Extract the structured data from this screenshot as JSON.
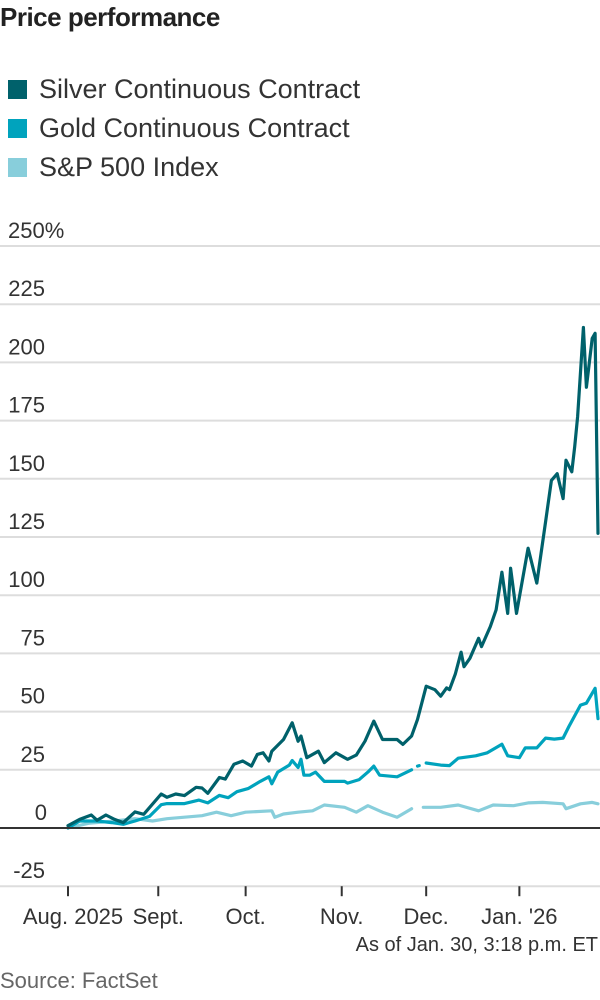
{
  "chart_data": {
    "type": "line",
    "title": "Price performance",
    "xlabel": "",
    "ylabel": "",
    "y_unit": "%",
    "ylim": [
      -25,
      250
    ],
    "yticks": [
      -25,
      0,
      25,
      50,
      75,
      100,
      125,
      150,
      175,
      200,
      225,
      250
    ],
    "ytick_labels": [
      "-25",
      "0",
      "25",
      "50",
      "75",
      "100",
      "125",
      "150",
      "175",
      "200",
      "225",
      "250%"
    ],
    "x_unit": "days since Aug. 1, 2025",
    "xlim": [
      0,
      182
    ],
    "xticks": [
      {
        "day": 0,
        "label": "Aug. 2025"
      },
      {
        "day": 31,
        "label": "Sept."
      },
      {
        "day": 61,
        "label": "Oct."
      },
      {
        "day": 94,
        "label": "Nov."
      },
      {
        "day": 123,
        "label": "Dec."
      },
      {
        "day": 155,
        "label": "Jan. '26"
      }
    ],
    "grid": true,
    "legend_position": "top-left",
    "series": [
      {
        "name": "Silver Continuous Contract",
        "color": "#00616b",
        "points": [
          [
            0,
            1
          ],
          [
            4,
            3.7
          ],
          [
            8,
            5.6
          ],
          [
            10,
            3.3
          ],
          [
            13,
            5.6
          ],
          [
            16,
            3.7
          ],
          [
            19,
            2.3
          ],
          [
            23,
            6.9
          ],
          [
            26,
            5.9
          ],
          [
            32,
            14.6
          ],
          [
            34,
            13.2
          ],
          [
            37,
            14.6
          ],
          [
            40,
            13.9
          ],
          [
            44,
            17.5
          ],
          [
            46,
            17.2
          ],
          [
            48,
            14.9
          ],
          [
            52,
            21.7
          ],
          [
            54,
            21
          ],
          [
            57,
            27.4
          ],
          [
            60,
            28.8
          ],
          [
            63,
            26.6
          ],
          [
            65,
            31.6
          ],
          [
            67,
            32.3
          ],
          [
            69,
            28.8
          ],
          [
            70,
            33
          ],
          [
            74,
            38
          ],
          [
            77,
            45.2
          ],
          [
            79,
            37.3
          ],
          [
            80,
            39.5
          ],
          [
            82,
            30.2
          ],
          [
            86,
            33
          ],
          [
            88,
            28.1
          ],
          [
            92,
            32.3
          ],
          [
            95,
            30.2
          ],
          [
            96,
            29.5
          ],
          [
            99,
            31.3
          ],
          [
            102,
            37.3
          ],
          [
            105,
            45.9
          ],
          [
            108,
            38
          ],
          [
            111,
            38
          ],
          [
            113,
            38
          ],
          [
            115,
            35.9
          ],
          [
            118,
            39.5
          ],
          [
            120,
            46.6
          ],
          [
            123,
            60.9
          ],
          [
            126,
            59.4
          ],
          [
            128,
            56.6
          ],
          [
            130,
            60.2
          ],
          [
            131,
            59.4
          ],
          [
            133,
            66.1
          ],
          [
            135,
            75.5
          ],
          [
            136,
            69.3
          ],
          [
            138,
            72.9
          ],
          [
            141,
            81.5
          ],
          [
            142,
            77.9
          ],
          [
            145,
            86.5
          ],
          [
            147,
            93.7
          ],
          [
            149,
            109.9
          ],
          [
            151,
            92.2
          ],
          [
            152,
            111.6
          ],
          [
            154,
            92.2
          ],
          [
            158,
            120.2
          ],
          [
            161,
            105.2
          ],
          [
            164,
            131.6
          ],
          [
            166,
            149.3
          ],
          [
            168,
            152.2
          ],
          [
            170,
            141.5
          ],
          [
            171,
            158
          ],
          [
            173,
            153
          ],
          [
            174,
            163.8
          ],
          [
            175,
            176.6
          ],
          [
            177,
            215
          ],
          [
            178,
            189.3
          ],
          [
            180,
            210.3
          ],
          [
            181,
            212.5
          ],
          [
            182,
            126.6
          ]
        ]
      },
      {
        "name": "Gold Continuous Contract",
        "color": "#00a3bd",
        "points": [
          [
            0,
            0
          ],
          [
            4,
            3
          ],
          [
            10,
            3
          ],
          [
            15,
            2.3
          ],
          [
            19,
            1.6
          ],
          [
            23,
            3
          ],
          [
            28,
            5
          ],
          [
            32,
            10
          ],
          [
            34,
            10.5
          ],
          [
            40,
            10.5
          ],
          [
            45,
            12
          ],
          [
            48,
            10.8
          ],
          [
            52,
            14
          ],
          [
            55,
            13
          ],
          [
            58,
            15.6
          ],
          [
            62,
            17
          ],
          [
            66,
            20
          ],
          [
            69,
            22
          ],
          [
            70,
            19
          ],
          [
            72,
            24
          ],
          [
            76,
            27
          ],
          [
            77,
            29
          ],
          [
            79,
            26
          ],
          [
            80,
            29.5
          ],
          [
            81,
            22.7
          ],
          [
            83,
            22.7
          ],
          [
            85,
            24
          ],
          [
            88,
            20
          ],
          [
            91,
            20
          ],
          [
            95,
            20
          ],
          [
            96,
            19.3
          ],
          [
            100,
            20.8
          ],
          [
            103,
            24
          ],
          [
            105,
            26.6
          ],
          [
            107,
            22.7
          ],
          [
            113,
            22
          ],
          [
            118,
            25
          ],
          null,
          [
            120,
            26.6
          ],
          [
            120.6,
            26.8
          ],
          null,
          [
            123,
            27.9
          ],
          [
            128,
            27
          ],
          [
            131,
            26.8
          ],
          [
            134,
            30
          ],
          [
            140,
            31
          ],
          [
            144,
            32.3
          ],
          [
            149,
            36
          ],
          [
            151,
            31
          ],
          [
            155,
            30.2
          ],
          [
            157,
            34.4
          ],
          [
            161,
            34.4
          ],
          [
            164,
            38.6
          ],
          [
            167,
            38.2
          ],
          [
            170,
            38.6
          ],
          [
            172,
            43.6
          ],
          [
            176,
            52.8
          ],
          [
            178,
            53.6
          ],
          [
            181,
            60
          ],
          [
            182,
            47
          ]
        ]
      },
      {
        "name": "S&P 500 Index",
        "color": "#88cedb",
        "points": [
          [
            0,
            0
          ],
          [
            7,
            2
          ],
          [
            16,
            3
          ],
          [
            23,
            4
          ],
          [
            29,
            3
          ],
          [
            34,
            4
          ],
          [
            46,
            5.3
          ],
          [
            51,
            6.8
          ],
          [
            56,
            5.3
          ],
          [
            61,
            6.8
          ],
          [
            70,
            7.4
          ],
          [
            71,
            4.6
          ],
          [
            74,
            6
          ],
          [
            79,
            6.8
          ],
          [
            84,
            7.4
          ],
          [
            88,
            9.9
          ],
          [
            95,
            8.9
          ],
          [
            99,
            6.8
          ],
          [
            103,
            9.6
          ],
          [
            108,
            6.8
          ],
          [
            113,
            4.6
          ],
          [
            118,
            8.3
          ],
          null,
          [
            122,
            8.9
          ],
          [
            128,
            8.9
          ],
          [
            134,
            9.9
          ],
          [
            141,
            7.4
          ],
          [
            146,
            9.9
          ],
          [
            153,
            9.6
          ],
          [
            158,
            10.8
          ],
          [
            163,
            11
          ],
          [
            170,
            10.4
          ],
          [
            171,
            8.3
          ],
          [
            176,
            10.4
          ],
          [
            180,
            11
          ],
          [
            182,
            10.4
          ]
        ]
      }
    ],
    "annotation": "As of Jan. 30, 3:18 p.m. ET",
    "source": "Source: FactSet"
  }
}
